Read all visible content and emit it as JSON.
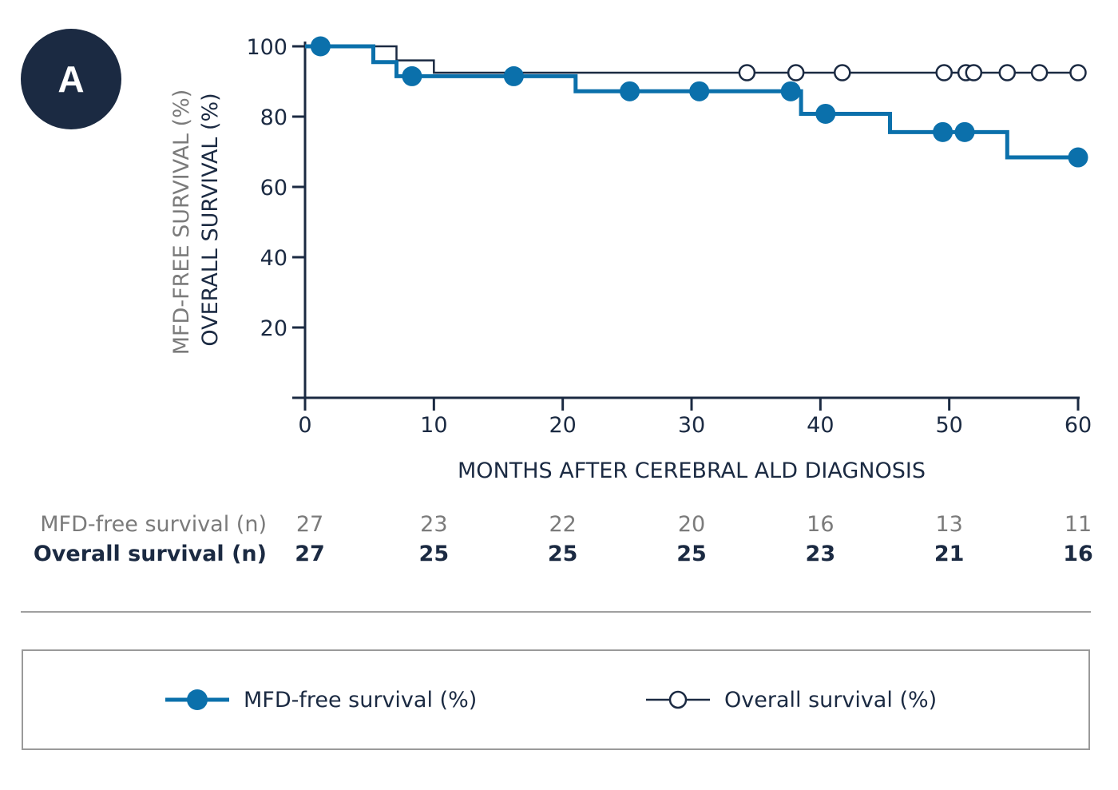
{
  "panel_label": "A",
  "chart_data": {
    "type": "line",
    "subtype": "kaplan-meier step",
    "xlabel": "MONTHS AFTER CEREBRAL ALD DIAGNOSIS",
    "ylabel_primary": "OVERALL SURVIVAL (%)",
    "ylabel_secondary": "MFD-FREE SURVIVAL (%)",
    "xlim": [
      0,
      60
    ],
    "ylim": [
      0,
      100
    ],
    "x_ticks": [
      0,
      10,
      20,
      30,
      40,
      50,
      60
    ],
    "y_ticks": [
      20,
      40,
      60,
      80,
      100
    ],
    "grid": false,
    "series": [
      {
        "name": "MFD-free survival (%)",
        "color": "#0b70ab",
        "marker": "filled-circle",
        "steps": [
          [
            0,
            100
          ],
          [
            5.3,
            100
          ],
          [
            5.3,
            95.5
          ],
          [
            7.1,
            95.5
          ],
          [
            7.1,
            91.5
          ],
          [
            21,
            91.5
          ],
          [
            21,
            87.2
          ],
          [
            38.5,
            87.2
          ],
          [
            38.5,
            80.8
          ],
          [
            45.4,
            80.8
          ],
          [
            45.4,
            75.6
          ],
          [
            54.5,
            75.6
          ],
          [
            54.5,
            68.4
          ],
          [
            60,
            68.4
          ]
        ],
        "censored": [
          [
            1.2,
            100
          ],
          [
            8.3,
            91.5
          ],
          [
            16.2,
            91.5
          ],
          [
            25.2,
            87.2
          ],
          [
            30.6,
            87.2
          ],
          [
            37.7,
            87.2
          ],
          [
            40.4,
            80.8
          ],
          [
            49.5,
            75.6
          ],
          [
            51.2,
            75.6
          ],
          [
            60,
            68.4
          ]
        ]
      },
      {
        "name": "Overall survival (%)",
        "color": "#1b2a42",
        "marker": "open-circle",
        "steps": [
          [
            0,
            100
          ],
          [
            7.1,
            100
          ],
          [
            7.1,
            96
          ],
          [
            10,
            96
          ],
          [
            10,
            92.5
          ],
          [
            60,
            92.5
          ]
        ],
        "censored": [
          [
            34.3,
            92.5
          ],
          [
            38.1,
            92.5
          ],
          [
            41.7,
            92.5
          ],
          [
            49.6,
            92.5
          ],
          [
            51.3,
            92.5
          ],
          [
            51.9,
            92.5
          ],
          [
            54.5,
            92.5
          ],
          [
            57,
            92.5
          ],
          [
            60,
            92.5
          ]
        ]
      }
    ],
    "risk_table": {
      "rows": [
        {
          "label": "MFD-free survival (n)",
          "color": "#7b7b7b",
          "bold": false,
          "values": [
            "27",
            "23",
            "22",
            "20",
            "16",
            "13",
            "11"
          ]
        },
        {
          "label": "Overall survival (n)",
          "color": "#1b2a42",
          "bold": true,
          "values": [
            "27",
            "25",
            "25",
            "25",
            "23",
            "21",
            "16"
          ]
        }
      ]
    },
    "legend": {
      "placement": "bottom",
      "entries": [
        {
          "label": "MFD-free survival (%)",
          "marker": "filled-circle",
          "color": "#0b70ab"
        },
        {
          "label": "Overall survival (%)",
          "marker": "open-circle",
          "color": "#1b2a42"
        }
      ]
    }
  }
}
